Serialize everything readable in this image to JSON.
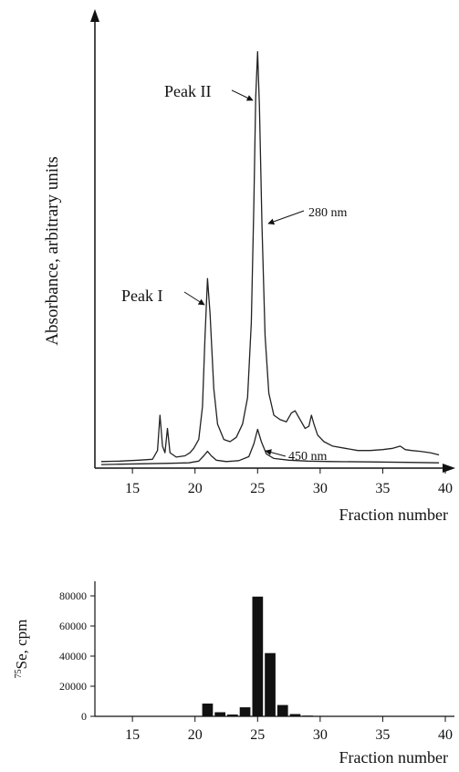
{
  "chart_data": [
    {
      "type": "line",
      "title": "",
      "xlabel": "Fraction number",
      "ylabel": "Absorbance, arbitrary units",
      "xlim": [
        12,
        40
      ],
      "ylim": [
        0,
        100
      ],
      "x_ticks": [
        15,
        20,
        25,
        30,
        35,
        40
      ],
      "x_tick_labels": [
        "15",
        "20",
        "25",
        "30",
        "35",
        "40"
      ],
      "y_ticks_shown": false,
      "series": [
        {
          "name": "280 nm",
          "points": [
            [
              12.5,
              1.5
            ],
            [
              14,
              1.6
            ],
            [
              15.5,
              1.8
            ],
            [
              16.6,
              2.0
            ],
            [
              17.0,
              4.0
            ],
            [
              17.2,
              12.0
            ],
            [
              17.4,
              5.0
            ],
            [
              17.6,
              3.5
            ],
            [
              17.8,
              9.0
            ],
            [
              18.0,
              3.5
            ],
            [
              18.5,
              2.5
            ],
            [
              19.2,
              2.8
            ],
            [
              19.6,
              3.5
            ],
            [
              19.9,
              4.5
            ],
            [
              20.3,
              6.5
            ],
            [
              20.6,
              14.0
            ],
            [
              20.8,
              30.0
            ],
            [
              21.0,
              43.0
            ],
            [
              21.2,
              35.0
            ],
            [
              21.5,
              18.0
            ],
            [
              21.8,
              10.0
            ],
            [
              22.3,
              6.5
            ],
            [
              22.8,
              6.0
            ],
            [
              23.3,
              7.0
            ],
            [
              23.8,
              10.0
            ],
            [
              24.2,
              16.0
            ],
            [
              24.5,
              33.0
            ],
            [
              24.7,
              60.0
            ],
            [
              24.85,
              84.0
            ],
            [
              25.0,
              94.5
            ],
            [
              25.15,
              82.0
            ],
            [
              25.35,
              55.0
            ],
            [
              25.6,
              30.0
            ],
            [
              25.9,
              17.0
            ],
            [
              26.3,
              12.0
            ],
            [
              26.8,
              11.0
            ],
            [
              27.3,
              10.5
            ],
            [
              27.7,
              12.5
            ],
            [
              28.0,
              13.0
            ],
            [
              28.4,
              11.0
            ],
            [
              28.8,
              9.0
            ],
            [
              29.1,
              9.5
            ],
            [
              29.3,
              12.0
            ],
            [
              29.5,
              10.0
            ],
            [
              29.8,
              7.5
            ],
            [
              30.3,
              6.0
            ],
            [
              31,
              5.0
            ],
            [
              32,
              4.5
            ],
            [
              33,
              4.0
            ],
            [
              34,
              4.0
            ],
            [
              35,
              4.2
            ],
            [
              35.8,
              4.5
            ],
            [
              36.4,
              5.0
            ],
            [
              36.8,
              4.2
            ],
            [
              37.3,
              4.0
            ],
            [
              38,
              3.8
            ],
            [
              38.8,
              3.5
            ],
            [
              39.5,
              3.0
            ]
          ]
        },
        {
          "name": "450 nm",
          "points": [
            [
              12.5,
              0.8
            ],
            [
              14,
              0.9
            ],
            [
              16,
              1.0
            ],
            [
              18,
              1.1
            ],
            [
              19.5,
              1.2
            ],
            [
              20.3,
              1.6
            ],
            [
              20.7,
              2.8
            ],
            [
              21.0,
              3.8
            ],
            [
              21.3,
              2.8
            ],
            [
              21.7,
              1.8
            ],
            [
              22.5,
              1.5
            ],
            [
              23.5,
              1.7
            ],
            [
              24.3,
              2.6
            ],
            [
              24.7,
              5.5
            ],
            [
              25.0,
              8.8
            ],
            [
              25.3,
              6.0
            ],
            [
              25.7,
              3.2
            ],
            [
              26.3,
              2.2
            ],
            [
              27.5,
              1.8
            ],
            [
              29,
              1.6
            ],
            [
              31,
              1.5
            ],
            [
              34,
              1.4
            ],
            [
              37,
              1.3
            ],
            [
              39.5,
              1.2
            ]
          ]
        }
      ],
      "annotations": [
        {
          "text": "Peak II",
          "x": 25.0,
          "y": 94.5
        },
        {
          "text": "280 nm",
          "x": 25.4,
          "y": 57.0
        },
        {
          "text": "Peak I",
          "x": 21.0,
          "y": 43.0
        },
        {
          "text": "450 nm",
          "x": 25.3,
          "y": 6.0
        }
      ]
    },
    {
      "type": "bar",
      "title": "",
      "xlabel": "Fraction number",
      "ylabel_sup": "75",
      "ylabel": "Se, cpm",
      "xlim": [
        12,
        40
      ],
      "ylim": [
        0,
        85000
      ],
      "x_ticks": [
        15,
        20,
        25,
        30,
        35,
        40
      ],
      "x_tick_labels": [
        "15",
        "20",
        "25",
        "30",
        "35",
        "40"
      ],
      "y_ticks": [
        0,
        20000,
        40000,
        60000,
        80000
      ],
      "y_tick_labels": [
        "0",
        "20000",
        "40000",
        "60000",
        "80000"
      ],
      "categories": [
        20,
        21,
        22,
        23,
        24,
        25,
        26,
        27,
        28,
        29
      ],
      "values": [
        300,
        8500,
        2700,
        1200,
        6000,
        79500,
        42000,
        7500,
        1500,
        500
      ]
    }
  ]
}
